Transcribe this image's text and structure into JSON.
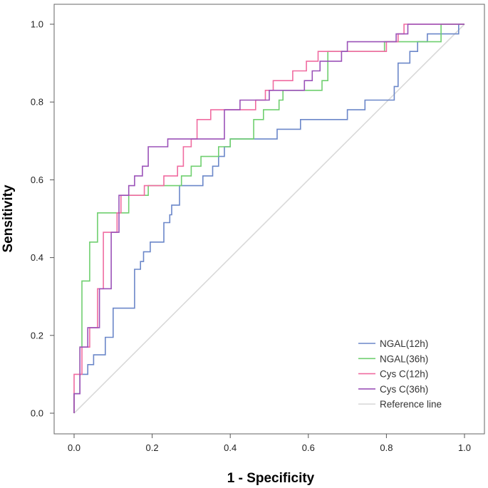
{
  "chart_data": {
    "type": "line",
    "title": "",
    "xlabel": "1 - Specificity",
    "ylabel": "Sensitivity",
    "xlim": [
      0,
      1
    ],
    "ylim": [
      0,
      1
    ],
    "x_ticks": [
      "0.0",
      "0.2",
      "0.4",
      "0.6",
      "0.8",
      "1.0"
    ],
    "y_ticks": [
      "0.0",
      "0.2",
      "0.4",
      "0.6",
      "0.8",
      "1.0"
    ],
    "legend_position": "bottom-right",
    "series": [
      {
        "name": "NGAL(12h)",
        "color": "#6b87c9",
        "points": [
          [
            0,
            0
          ],
          [
            0,
            0.05
          ],
          [
            0.015,
            0.05
          ],
          [
            0.015,
            0.1
          ],
          [
            0.035,
            0.1
          ],
          [
            0.035,
            0.125
          ],
          [
            0.05,
            0.125
          ],
          [
            0.05,
            0.15
          ],
          [
            0.08,
            0.15
          ],
          [
            0.08,
            0.195
          ],
          [
            0.1,
            0.195
          ],
          [
            0.1,
            0.245
          ],
          [
            0.1,
            0.27
          ],
          [
            0.155,
            0.27
          ],
          [
            0.155,
            0.37
          ],
          [
            0.17,
            0.37
          ],
          [
            0.17,
            0.39
          ],
          [
            0.178,
            0.39
          ],
          [
            0.178,
            0.415
          ],
          [
            0.195,
            0.415
          ],
          [
            0.195,
            0.44
          ],
          [
            0.23,
            0.44
          ],
          [
            0.23,
            0.49
          ],
          [
            0.245,
            0.49
          ],
          [
            0.245,
            0.51
          ],
          [
            0.25,
            0.51
          ],
          [
            0.25,
            0.535
          ],
          [
            0.27,
            0.535
          ],
          [
            0.27,
            0.585
          ],
          [
            0.33,
            0.585
          ],
          [
            0.33,
            0.61
          ],
          [
            0.355,
            0.61
          ],
          [
            0.355,
            0.635
          ],
          [
            0.37,
            0.635
          ],
          [
            0.37,
            0.66
          ],
          [
            0.385,
            0.66
          ],
          [
            0.385,
            0.685
          ],
          [
            0.4,
            0.685
          ],
          [
            0.4,
            0.705
          ],
          [
            0.465,
            0.705
          ],
          [
            0.52,
            0.705
          ],
          [
            0.52,
            0.73
          ],
          [
            0.58,
            0.73
          ],
          [
            0.58,
            0.755
          ],
          [
            0.7,
            0.755
          ],
          [
            0.7,
            0.78
          ],
          [
            0.745,
            0.78
          ],
          [
            0.745,
            0.805
          ],
          [
            0.82,
            0.805
          ],
          [
            0.82,
            0.84
          ],
          [
            0.83,
            0.84
          ],
          [
            0.83,
            0.9
          ],
          [
            0.86,
            0.9
          ],
          [
            0.86,
            0.93
          ],
          [
            0.88,
            0.93
          ],
          [
            0.88,
            0.955
          ],
          [
            0.905,
            0.955
          ],
          [
            0.905,
            0.975
          ],
          [
            0.985,
            0.975
          ],
          [
            0.985,
            1.0
          ],
          [
            1.0,
            1.0
          ]
        ]
      },
      {
        "name": "NGAL(36h)",
        "color": "#6fcf6f",
        "points": [
          [
            0,
            0
          ],
          [
            0,
            0.05
          ],
          [
            0.015,
            0.05
          ],
          [
            0.015,
            0.17
          ],
          [
            0.02,
            0.17
          ],
          [
            0.02,
            0.34
          ],
          [
            0.04,
            0.34
          ],
          [
            0.04,
            0.44
          ],
          [
            0.06,
            0.44
          ],
          [
            0.06,
            0.515
          ],
          [
            0.14,
            0.515
          ],
          [
            0.14,
            0.56
          ],
          [
            0.19,
            0.56
          ],
          [
            0.19,
            0.585
          ],
          [
            0.275,
            0.585
          ],
          [
            0.275,
            0.61
          ],
          [
            0.3,
            0.61
          ],
          [
            0.3,
            0.635
          ],
          [
            0.325,
            0.635
          ],
          [
            0.325,
            0.66
          ],
          [
            0.37,
            0.66
          ],
          [
            0.37,
            0.685
          ],
          [
            0.4,
            0.685
          ],
          [
            0.4,
            0.705
          ],
          [
            0.46,
            0.705
          ],
          [
            0.46,
            0.755
          ],
          [
            0.485,
            0.755
          ],
          [
            0.485,
            0.78
          ],
          [
            0.525,
            0.78
          ],
          [
            0.525,
            0.805
          ],
          [
            0.535,
            0.805
          ],
          [
            0.535,
            0.83
          ],
          [
            0.635,
            0.83
          ],
          [
            0.635,
            0.855
          ],
          [
            0.65,
            0.855
          ],
          [
            0.65,
            0.93
          ],
          [
            0.795,
            0.93
          ],
          [
            0.795,
            0.955
          ],
          [
            0.94,
            0.955
          ],
          [
            0.94,
            1.0
          ],
          [
            1.0,
            1.0
          ]
        ]
      },
      {
        "name": "Cys C(12h)",
        "color": "#f06ba0",
        "points": [
          [
            0,
            0
          ],
          [
            0,
            0.1
          ],
          [
            0.02,
            0.1
          ],
          [
            0.02,
            0.17
          ],
          [
            0.04,
            0.17
          ],
          [
            0.04,
            0.22
          ],
          [
            0.06,
            0.22
          ],
          [
            0.06,
            0.32
          ],
          [
            0.075,
            0.32
          ],
          [
            0.075,
            0.465
          ],
          [
            0.11,
            0.465
          ],
          [
            0.11,
            0.515
          ],
          [
            0.12,
            0.515
          ],
          [
            0.12,
            0.56
          ],
          [
            0.18,
            0.56
          ],
          [
            0.18,
            0.585
          ],
          [
            0.23,
            0.585
          ],
          [
            0.23,
            0.61
          ],
          [
            0.265,
            0.61
          ],
          [
            0.265,
            0.635
          ],
          [
            0.28,
            0.635
          ],
          [
            0.28,
            0.685
          ],
          [
            0.3,
            0.685
          ],
          [
            0.3,
            0.705
          ],
          [
            0.315,
            0.705
          ],
          [
            0.315,
            0.755
          ],
          [
            0.35,
            0.755
          ],
          [
            0.35,
            0.78
          ],
          [
            0.465,
            0.78
          ],
          [
            0.465,
            0.805
          ],
          [
            0.49,
            0.805
          ],
          [
            0.49,
            0.83
          ],
          [
            0.51,
            0.83
          ],
          [
            0.51,
            0.855
          ],
          [
            0.56,
            0.855
          ],
          [
            0.56,
            0.88
          ],
          [
            0.595,
            0.88
          ],
          [
            0.595,
            0.905
          ],
          [
            0.625,
            0.905
          ],
          [
            0.625,
            0.93
          ],
          [
            0.8,
            0.93
          ],
          [
            0.8,
            0.955
          ],
          [
            0.83,
            0.955
          ],
          [
            0.83,
            0.975
          ],
          [
            0.845,
            0.975
          ],
          [
            0.845,
            1.0
          ],
          [
            1.0,
            1.0
          ]
        ]
      },
      {
        "name": "Cys C(36h)",
        "color": "#9b52b8",
        "points": [
          [
            0,
            0
          ],
          [
            0,
            0.05
          ],
          [
            0.015,
            0.05
          ],
          [
            0.015,
            0.17
          ],
          [
            0.035,
            0.17
          ],
          [
            0.035,
            0.22
          ],
          [
            0.065,
            0.22
          ],
          [
            0.065,
            0.32
          ],
          [
            0.095,
            0.32
          ],
          [
            0.095,
            0.465
          ],
          [
            0.115,
            0.465
          ],
          [
            0.115,
            0.56
          ],
          [
            0.14,
            0.56
          ],
          [
            0.14,
            0.585
          ],
          [
            0.155,
            0.585
          ],
          [
            0.155,
            0.61
          ],
          [
            0.175,
            0.61
          ],
          [
            0.175,
            0.635
          ],
          [
            0.19,
            0.635
          ],
          [
            0.19,
            0.685
          ],
          [
            0.24,
            0.685
          ],
          [
            0.24,
            0.705
          ],
          [
            0.385,
            0.705
          ],
          [
            0.385,
            0.78
          ],
          [
            0.425,
            0.78
          ],
          [
            0.425,
            0.805
          ],
          [
            0.5,
            0.805
          ],
          [
            0.5,
            0.83
          ],
          [
            0.59,
            0.83
          ],
          [
            0.59,
            0.855
          ],
          [
            0.61,
            0.855
          ],
          [
            0.61,
            0.88
          ],
          [
            0.63,
            0.88
          ],
          [
            0.63,
            0.905
          ],
          [
            0.685,
            0.905
          ],
          [
            0.685,
            0.93
          ],
          [
            0.7,
            0.93
          ],
          [
            0.7,
            0.955
          ],
          [
            0.825,
            0.955
          ],
          [
            0.825,
            0.975
          ],
          [
            0.855,
            0.975
          ],
          [
            0.855,
            1.0
          ],
          [
            1.0,
            1.0
          ]
        ]
      },
      {
        "name": "Reference line",
        "color": "#d9d9d9",
        "points": [
          [
            0,
            0
          ],
          [
            1,
            1
          ]
        ]
      }
    ]
  }
}
